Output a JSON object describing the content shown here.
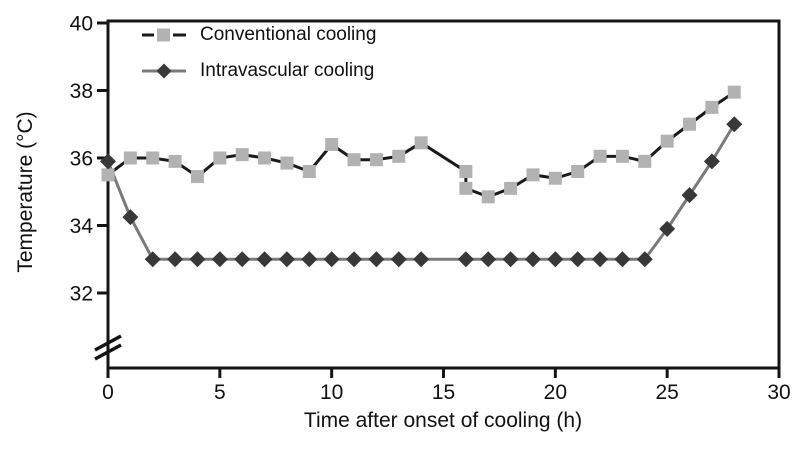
{
  "chart_data": {
    "type": "line",
    "title": "",
    "xlabel": "Time after onset of cooling (h)",
    "ylabel": "Temperature (°C)",
    "xlim": [
      0,
      30
    ],
    "ylim": [
      32,
      40
    ],
    "y_axis_break": "between x-axis and 32",
    "x_ticks": [
      0,
      5,
      10,
      15,
      20,
      25,
      30
    ],
    "y_ticks": [
      32,
      34,
      36,
      38,
      40
    ],
    "grid": false,
    "legend_position": "top-left",
    "frame": "full box with left-axis break marks",
    "colors": {
      "axis": "#141414",
      "text": "#111111",
      "conventional_line": "#1a1a1a",
      "conventional_marker": "#b2b2b2",
      "intravascular_line": "#7a7a7a",
      "intravascular_marker": "#383838"
    },
    "series": [
      {
        "name": "Conventional cooling",
        "marker": "square",
        "marker_color": "#b2b2b2",
        "line_color": "#1a1a1a",
        "line_style": "solid",
        "points": [
          [
            0,
            35.5
          ],
          [
            1,
            36.0
          ],
          [
            2,
            36.0
          ],
          [
            3,
            35.9
          ],
          [
            4,
            35.45
          ],
          [
            5,
            36.0
          ],
          [
            6,
            36.1
          ],
          [
            7,
            36.0
          ],
          [
            8,
            35.85
          ],
          [
            9,
            35.6
          ],
          [
            10,
            36.4
          ],
          [
            11,
            35.95
          ],
          [
            12,
            35.95
          ],
          [
            13,
            36.05
          ],
          [
            14,
            36.45
          ],
          [
            16,
            35.6
          ],
          [
            16,
            35.1
          ],
          [
            17,
            34.85
          ],
          [
            18,
            35.1
          ],
          [
            19,
            35.5
          ],
          [
            20,
            35.4
          ],
          [
            21,
            35.6
          ],
          [
            22,
            36.05
          ],
          [
            23,
            36.05
          ],
          [
            24,
            35.9
          ],
          [
            25,
            36.5
          ],
          [
            26,
            37.0
          ],
          [
            27,
            37.5
          ],
          [
            28,
            37.95
          ]
        ]
      },
      {
        "name": "Intravascular cooling",
        "marker": "diamond",
        "marker_color": "#383838",
        "line_color": "#7a7a7a",
        "line_style": "solid",
        "points": [
          [
            0,
            35.9
          ],
          [
            1,
            34.25
          ],
          [
            2,
            33.0
          ],
          [
            3,
            33.0
          ],
          [
            4,
            33.0
          ],
          [
            5,
            33.0
          ],
          [
            6,
            33.0
          ],
          [
            7,
            33.0
          ],
          [
            8,
            33.0
          ],
          [
            9,
            33.0
          ],
          [
            10,
            33.0
          ],
          [
            11,
            33.0
          ],
          [
            12,
            33.0
          ],
          [
            13,
            33.0
          ],
          [
            14,
            33.0
          ],
          [
            16,
            33.0
          ],
          [
            17,
            33.0
          ],
          [
            18,
            33.0
          ],
          [
            19,
            33.0
          ],
          [
            20,
            33.0
          ],
          [
            21,
            33.0
          ],
          [
            22,
            33.0
          ],
          [
            23,
            33.0
          ],
          [
            24,
            33.0
          ],
          [
            25,
            33.9
          ],
          [
            26,
            34.9
          ],
          [
            27,
            35.9
          ],
          [
            28,
            37.0
          ]
        ]
      }
    ]
  }
}
